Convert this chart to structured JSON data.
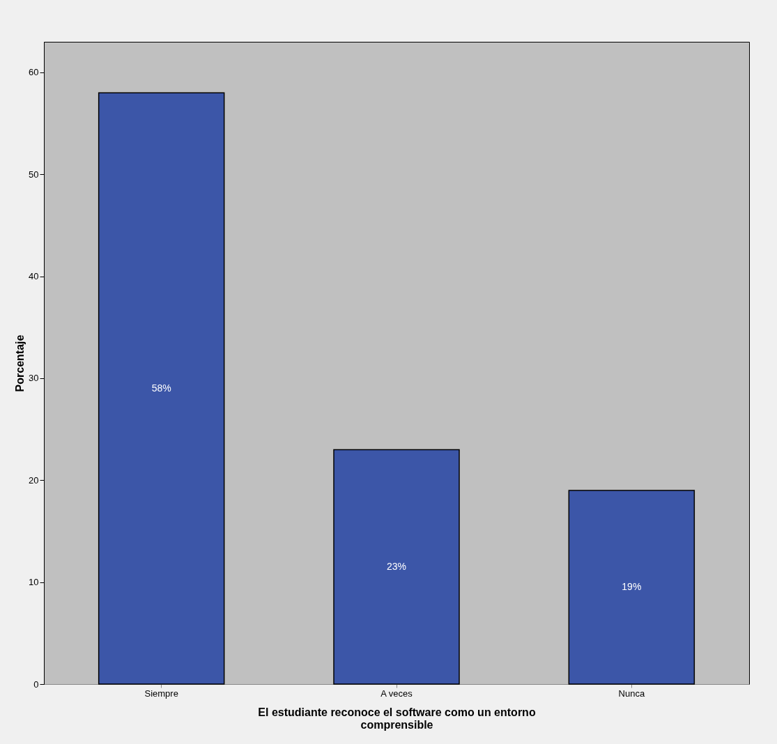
{
  "chart_data": {
    "type": "bar",
    "categories": [
      "Siempre",
      "A veces",
      "Nunca"
    ],
    "values": [
      58,
      23,
      19
    ],
    "value_labels": [
      "58%",
      "23%",
      "19%"
    ],
    "color": "#3c56a8",
    "xlabel": "El estudiante reconoce el software como un entorno comprensible",
    "ylabel": "Porcentaje",
    "ylim": [
      0,
      63
    ],
    "yticks": [
      0,
      10,
      20,
      30,
      40,
      50,
      60
    ],
    "grid": false
  }
}
